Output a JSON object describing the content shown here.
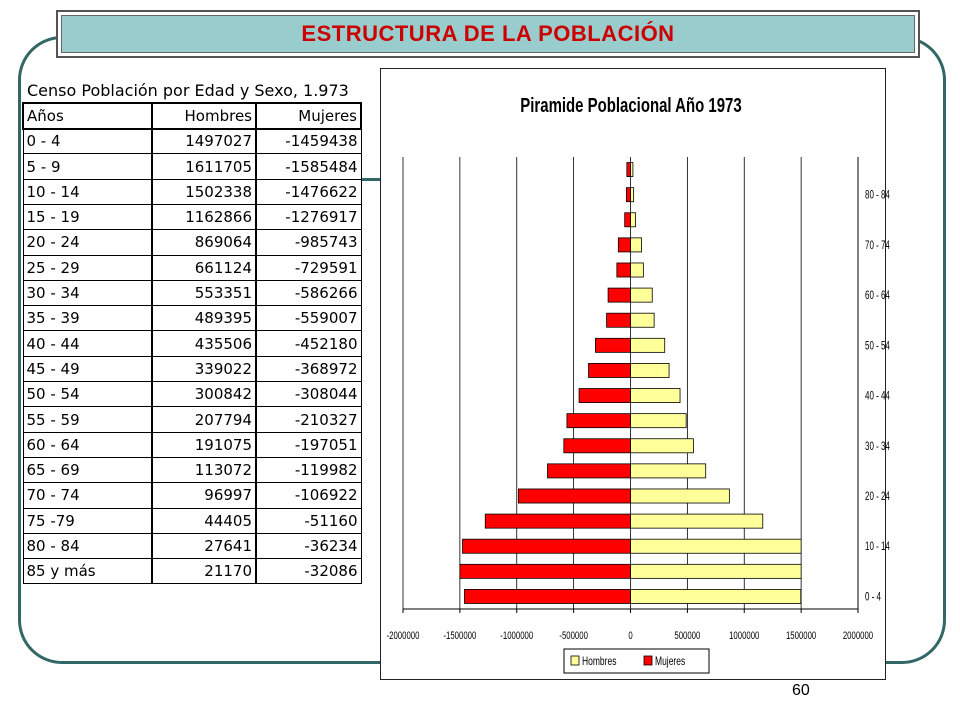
{
  "header": {
    "title": "ESTRUCTURA DE LA POBLACIÓN"
  },
  "table": {
    "caption": "Censo Población por Edad y Sexo, 1.973",
    "columns": [
      "Años",
      "Hombres",
      "Mujeres"
    ],
    "rows": [
      [
        "0 - 4",
        "1497027",
        "-1459438"
      ],
      [
        "5 - 9",
        "1611705",
        "-1585484"
      ],
      [
        "10 - 14",
        "1502338",
        "-1476622"
      ],
      [
        "15 - 19",
        "1162866",
        "-1276917"
      ],
      [
        "20 - 24",
        "869064",
        "-985743"
      ],
      [
        "25 - 29",
        "661124",
        "-729591"
      ],
      [
        "30 - 34",
        "553351",
        "-586266"
      ],
      [
        "35 - 39",
        "489395",
        "-559007"
      ],
      [
        "40 - 44",
        "435506",
        "-452180"
      ],
      [
        "45 - 49",
        "339022",
        "-368972"
      ],
      [
        "50 - 54",
        "300842",
        "-308044"
      ],
      [
        "55 - 59",
        "207794",
        "-210327"
      ],
      [
        "60 - 64",
        "191075",
        "-197051"
      ],
      [
        "65 - 69",
        "113072",
        "-119982"
      ],
      [
        "70 - 74",
        "96997",
        "-106922"
      ],
      [
        "75 -79",
        "44405",
        "-51160"
      ],
      [
        "80 - 84",
        "27641",
        "-36234"
      ],
      [
        "85 y más",
        "21170",
        "-32086"
      ]
    ]
  },
  "chart_data": {
    "type": "bar",
    "orientation": "horizontal",
    "title": "Piramide Poblacional Año 1973",
    "categories": [
      "0 - 4",
      "5 - 9",
      "10 - 14",
      "15 - 19",
      "20 - 24",
      "25 - 29",
      "30 - 34",
      "35 - 39",
      "40 - 44",
      "45 - 49",
      "50 - 54",
      "55 - 59",
      "60 - 64",
      "65 - 69",
      "70 - 74",
      "75 -79",
      "80 - 84",
      "85 y más"
    ],
    "category_tick_labels": [
      "0 - 4",
      "10 - 14",
      "20 - 24",
      "30 - 34",
      "40 - 44",
      "50 - 54",
      "60 - 64",
      "70 - 74",
      "80 - 84"
    ],
    "series": [
      {
        "name": "Hombres",
        "color": "#ffff99",
        "values": [
          1497027,
          1611705,
          1502338,
          1162866,
          869064,
          661124,
          553351,
          489395,
          435506,
          339022,
          300842,
          207794,
          191075,
          113072,
          96997,
          44405,
          27641,
          21170
        ]
      },
      {
        "name": "Mujeres",
        "color": "#ff0000",
        "values": [
          -1459438,
          -1585484,
          -1476622,
          -1276917,
          -985743,
          -729591,
          -586266,
          -559007,
          -452180,
          -368972,
          -308044,
          -210327,
          -197051,
          -119982,
          -106922,
          -51160,
          -36234,
          -32086
        ]
      }
    ],
    "x_ticks": [
      "-2000000",
      "-1500000",
      "-1000000",
      "-500000",
      "0",
      "500000",
      "1000000",
      "1500000",
      "2000000"
    ],
    "xlim": [
      -2000000,
      2000000
    ],
    "x_clip": [
      -1500000,
      1500000
    ],
    "grid": true,
    "legend_position": "bottom"
  },
  "footer": {
    "page_number": "60"
  }
}
